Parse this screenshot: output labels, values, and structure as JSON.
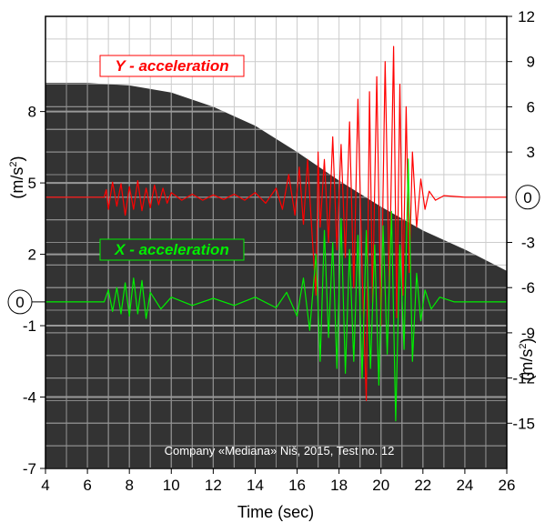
{
  "chart_data": {
    "type": "line",
    "xlabel": "Time (sec)",
    "xlim": [
      4,
      26
    ],
    "x_ticks": [
      "4",
      "6",
      "8",
      "10",
      "12",
      "14",
      "16",
      "18",
      "20",
      "22",
      "24",
      "26"
    ],
    "left_axis": {
      "label": "m/s",
      "label_superscript": "2",
      "ticks": [
        "8",
        "5",
        "2",
        "-1",
        "-4",
        "-7"
      ],
      "zero_label": "0",
      "range": [
        -7,
        12
      ]
    },
    "right_axis": {
      "label": "m/s",
      "label_superscript": "2",
      "ticks": [
        "12",
        "9",
        "6",
        "3",
        "-3",
        "-6",
        "-9",
        "-12",
        "-15"
      ],
      "zero_label": "0",
      "range": [
        -18,
        12
      ]
    },
    "legend": [
      {
        "name": "Y - acceleration",
        "color": "#ff0000"
      },
      {
        "name": "X - acceleration",
        "color": "#00ee00"
      }
    ],
    "series": [
      {
        "name": "Y - acceleration",
        "axis": "right",
        "color": "#ff0000",
        "x": [
          4,
          6.8,
          6.9,
          7.0,
          7.2,
          7.4,
          7.6,
          7.8,
          8.0,
          8.2,
          8.4,
          8.6,
          8.8,
          9.0,
          9.2,
          9.4,
          9.6,
          9.8,
          10.0,
          10.5,
          11,
          11.5,
          12,
          12.5,
          13,
          13.5,
          14,
          14.5,
          15,
          15.3,
          15.6,
          15.9,
          16.1,
          16.3,
          16.5,
          16.7,
          16.9,
          17.0,
          17.1,
          17.3,
          17.5,
          17.7,
          17.9,
          18.1,
          18.3,
          18.5,
          18.7,
          18.9,
          19.1,
          19.3,
          19.45,
          19.6,
          19.8,
          20.0,
          20.2,
          20.4,
          20.6,
          20.75,
          20.9,
          21.05,
          21.2,
          21.35,
          21.5,
          21.7,
          21.9,
          22.1,
          22.3,
          22.6,
          23,
          24,
          26
        ],
        "values": [
          0,
          0,
          0.5,
          -0.8,
          1.0,
          -0.6,
          0.9,
          -1.2,
          0.7,
          -0.8,
          1.1,
          -0.9,
          0.6,
          -0.7,
          0.8,
          -0.5,
          0.6,
          -0.4,
          0.3,
          -0.2,
          0.2,
          -0.2,
          0.15,
          -0.15,
          0.2,
          -0.2,
          0.3,
          -0.4,
          0.6,
          -0.8,
          1.5,
          -1.2,
          2.0,
          -1.8,
          2.5,
          -2.2,
          -6.5,
          3.0,
          -2.0,
          2.5,
          -3.0,
          4.0,
          -3.5,
          3.5,
          -4.0,
          5.0,
          -6.0,
          6.5,
          -5.0,
          -13.5,
          7.0,
          -7.0,
          8.0,
          -8.5,
          9.0,
          -6.0,
          10.0,
          -8.0,
          7.5,
          -6.5,
          6.0,
          -5.0,
          3.0,
          -2.0,
          1.2,
          -0.8,
          0.4,
          -0.2,
          0.1,
          0,
          0
        ]
      },
      {
        "name": "X - acceleration",
        "axis": "left",
        "color": "#00ee00",
        "x": [
          4,
          6.8,
          7.0,
          7.2,
          7.4,
          7.6,
          7.8,
          8.0,
          8.2,
          8.4,
          8.6,
          8.8,
          9.0,
          9.5,
          10,
          11,
          12,
          13,
          14,
          15,
          15.5,
          16.0,
          16.3,
          16.6,
          16.9,
          17.1,
          17.3,
          17.5,
          17.7,
          17.9,
          18.1,
          18.3,
          18.5,
          18.7,
          18.9,
          19.1,
          19.3,
          19.5,
          19.7,
          19.9,
          20.1,
          20.3,
          20.5,
          20.7,
          20.9,
          21.1,
          21.3,
          21.5,
          21.7,
          21.9,
          22.1,
          22.4,
          22.8,
          23.5,
          26
        ],
        "values": [
          0,
          0,
          0.5,
          -0.4,
          0.6,
          -0.5,
          0.8,
          -0.6,
          1.0,
          -0.5,
          0.9,
          -0.7,
          0.4,
          -0.3,
          0.2,
          -0.15,
          0.15,
          -0.15,
          0.2,
          -0.25,
          0.4,
          -0.6,
          1.0,
          -1.2,
          2.0,
          -2.5,
          3.0,
          -1.5,
          2.5,
          -2.8,
          3.5,
          -3.0,
          2.2,
          -2.5,
          2.8,
          -3.2,
          3.0,
          -2.8,
          2.4,
          -3.5,
          3.2,
          -2.2,
          3.8,
          -5.0,
          2.4,
          -2.0,
          6.0,
          -2.5,
          1.2,
          -0.8,
          0.5,
          -0.3,
          0.2,
          0,
          0
        ]
      }
    ],
    "background_curve": {
      "x": [
        4,
        6,
        8,
        10,
        12,
        14,
        16,
        18,
        20,
        22,
        24,
        26
      ],
      "values": [
        9.2,
        9.2,
        9.1,
        8.8,
        8.2,
        7.4,
        6.3,
        5.1,
        4.0,
        3.0,
        2.2,
        1.3
      ]
    },
    "grid": true,
    "annotation": "Company «Mediana» Niš, 2015, Test no. 12"
  },
  "colors": {
    "background_fill": "#333333",
    "grid": "#cccccc",
    "grid_on_dark": "#888888",
    "y_series": "#ff0000",
    "x_series": "#00ee00"
  }
}
